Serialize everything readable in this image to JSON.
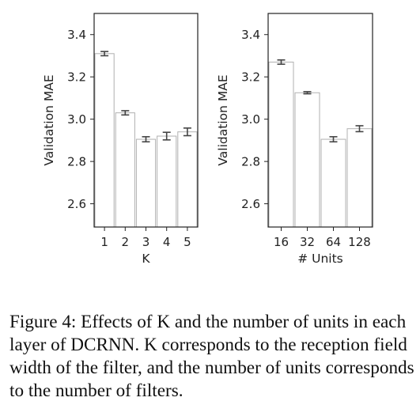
{
  "chart_data": [
    {
      "type": "bar",
      "categories": [
        "1",
        "2",
        "3",
        "4",
        "5"
      ],
      "values": [
        3.31,
        3.03,
        2.905,
        2.92,
        2.94
      ],
      "errors": [
        0.01,
        0.01,
        0.012,
        0.018,
        0.018
      ],
      "xlabel": "K",
      "ylabel": "Validation MAE",
      "ylim": [
        2.49,
        3.5
      ],
      "yticks": [
        "2.6",
        "2.8",
        "3.0",
        "3.2",
        "3.4"
      ],
      "grid": false,
      "bar_fill": "#ffffff",
      "bar_edge": "#b0b0b0",
      "error_color": "#444444"
    },
    {
      "type": "bar",
      "categories": [
        "16",
        "32",
        "64",
        "128"
      ],
      "values": [
        3.27,
        3.125,
        2.905,
        2.955
      ],
      "errors": [
        0.01,
        0.005,
        0.012,
        0.014
      ],
      "xlabel": "# Units",
      "ylabel": "Validation MAE",
      "ylim": [
        2.49,
        3.5
      ],
      "yticks": [
        "2.6",
        "2.8",
        "3.0",
        "3.2",
        "3.4"
      ],
      "grid": false,
      "bar_fill": "#ffffff",
      "bar_edge": "#b0b0b0",
      "error_color": "#444444"
    }
  ],
  "caption": "Figure 4: Effects of K and the number of units in each layer of DCRNN. K corresponds to the reception field width of the filter, and the number of units corresponds to the number of filters."
}
